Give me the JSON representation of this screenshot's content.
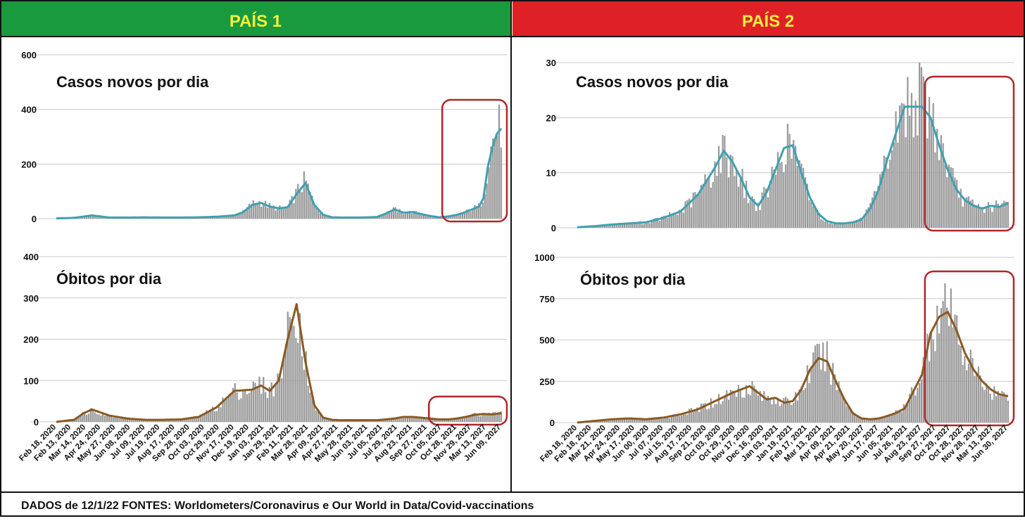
{
  "panels": [
    {
      "header": "PAÍS 1",
      "header_color": "#1a9a3e",
      "header_text_color": "#f5f03a",
      "x_labels": [
        "Feb 18, 2020",
        "Feb 13, 2020",
        "Mar 14, 2020",
        "Apr 24, 2020",
        "May 27, 2020",
        "Jun 08, 2020",
        "Jul 09, 2020",
        "Jul 19, 2020",
        "Aug 17, 2020",
        "Sep 28, 2020",
        "Oct 03, 2020",
        "Oct 29, 2020",
        "Nov 17, 2020",
        "Dec 19, 2020",
        "Jan 03, 2021",
        "Jan 29, 2021",
        "Feb 11, 2021",
        "Mar 28, 2021",
        "Apr 09, 2021",
        "Apr 27, 2021",
        "May 28, 2021",
        "Jun 03, 2021",
        "Jul 05, 2021",
        "Jul 29, 2021",
        "Aug 23, 2021",
        "Sep 27, 2021",
        "Oct 05, 2027",
        "Oct 28, 2021",
        "Nov 29, 2027",
        "Mar 13, 2027",
        "Jun 09, 2027"
      ]
    },
    {
      "header": "PAÍS 2",
      "header_color": "#e02027",
      "header_text_color": "#f5f03a",
      "x_labels": [
        "Feb 18, 2020",
        "Feb 18, 2020",
        "Mar 21, 2020",
        "Apr 24, 2020",
        "May 17, 2020",
        "Jun 00, 2020",
        "Jul 07, 2020",
        "Jul 15, 2020",
        "Aug 17, 2020",
        "Sep 21, 2020",
        "Oct 03, 2020",
        "Oct 29, 2020",
        "Nov 17, 2020",
        "Dec 16, 2020",
        "Jan 03, 2021",
        "Jan 19, 2021",
        "Feb 17, 2021",
        "Mar 13, 2021",
        "Apr 09, 2021",
        "Apr 21, 2021",
        "May 20, 2027",
        "Jun 17, 2027",
        "Jun 05, 2021",
        "Jul 26, 2021",
        "Aug 23, 2027",
        "Sep 27, 2027",
        "Oct 29, 2027",
        "Oct 28, 2027",
        "Nov 28, 2027",
        "Mar 13, 2027",
        "Jun 30, 2027"
      ]
    }
  ],
  "footer": "DADOS de 12/1/22 FONTES: Worldometers/Coronavirus e Our World in Data/Covid-vaccinations",
  "chart_data": [
    {
      "type": "bar",
      "panel": "PAÍS 1",
      "title": "Casos novos por dia",
      "ylim": [
        0,
        600
      ],
      "y_ticks": [
        "0",
        "200",
        "400",
        "600"
      ],
      "grid": true,
      "bar_color": "#9a9a9a",
      "line_color": "#3fa1b0",
      "highlight_box": [
        0.88,
        1.0
      ],
      "x": [
        0,
        0.04,
        0.08,
        0.12,
        0.16,
        0.2,
        0.24,
        0.28,
        0.32,
        0.36,
        0.4,
        0.42,
        0.44,
        0.46,
        0.48,
        0.5,
        0.52,
        0.54,
        0.56,
        0.58,
        0.6,
        0.62,
        0.64,
        0.68,
        0.72,
        0.74,
        0.76,
        0.78,
        0.8,
        0.82,
        0.84,
        0.86,
        0.88,
        0.9,
        0.92,
        0.94,
        0.95,
        0.96,
        0.97,
        0.98,
        0.99,
        1.0
      ],
      "values": [
        1,
        3,
        12,
        4,
        4,
        5,
        4,
        4,
        5,
        7,
        13,
        25,
        55,
        62,
        45,
        38,
        40,
        95,
        140,
        52,
        15,
        5,
        4,
        4,
        6,
        20,
        35,
        22,
        25,
        18,
        10,
        5,
        8,
        15,
        25,
        40,
        45,
        80,
        200,
        280,
        320,
        340
      ],
      "trend": [
        1,
        3,
        12,
        4,
        4,
        5,
        4,
        4,
        5,
        7,
        12,
        24,
        50,
        58,
        44,
        38,
        42,
        90,
        130,
        50,
        14,
        5,
        4,
        4,
        6,
        18,
        34,
        22,
        24,
        17,
        10,
        5,
        8,
        14,
        24,
        38,
        44,
        75,
        190,
        260,
        310,
        330
      ]
    },
    {
      "type": "bar",
      "panel": "PAÍS 1",
      "title": "Óbitos por dia",
      "ylim": [
        0,
        400
      ],
      "y_ticks": [
        "0",
        "100",
        "200",
        "300",
        "400"
      ],
      "grid": true,
      "bar_color": "#9a9a9a",
      "line_color": "#8a5a22",
      "highlight_box": [
        0.85,
        1.0
      ],
      "x": [
        0,
        0.04,
        0.06,
        0.08,
        0.12,
        0.16,
        0.2,
        0.24,
        0.28,
        0.32,
        0.36,
        0.4,
        0.44,
        0.46,
        0.48,
        0.5,
        0.52,
        0.54,
        0.56,
        0.58,
        0.6,
        0.62,
        0.64,
        0.68,
        0.72,
        0.76,
        0.78,
        0.8,
        0.82,
        0.84,
        0.86,
        0.88,
        0.9,
        0.92,
        0.94,
        0.96,
        0.98,
        1.0
      ],
      "values": [
        0,
        5,
        20,
        30,
        15,
        8,
        5,
        5,
        6,
        12,
        35,
        75,
        80,
        90,
        75,
        100,
        210,
        290,
        150,
        40,
        10,
        5,
        4,
        4,
        4,
        8,
        12,
        12,
        10,
        8,
        6,
        6,
        8,
        12,
        18,
        20,
        18,
        22
      ],
      "trend": [
        0,
        5,
        20,
        30,
        15,
        8,
        5,
        5,
        6,
        12,
        35,
        75,
        78,
        88,
        75,
        100,
        200,
        285,
        145,
        40,
        10,
        5,
        4,
        4,
        4,
        8,
        12,
        12,
        10,
        8,
        6,
        6,
        8,
        12,
        17,
        19,
        18,
        21
      ]
    },
    {
      "type": "bar",
      "panel": "PAÍS 2",
      "title": "Casos novos por dia",
      "ylim": [
        0,
        30
      ],
      "y_ticks": [
        "0",
        "10",
        "20",
        "30"
      ],
      "grid": true,
      "bar_color": "#9a9a9a",
      "line_color": "#3fa1b0",
      "highlight_box": [
        0.82,
        1.0
      ],
      "x": [
        0,
        0.04,
        0.08,
        0.12,
        0.16,
        0.2,
        0.24,
        0.28,
        0.3,
        0.32,
        0.34,
        0.36,
        0.38,
        0.4,
        0.42,
        0.44,
        0.46,
        0.48,
        0.5,
        0.52,
        0.54,
        0.56,
        0.58,
        0.6,
        0.62,
        0.64,
        0.66,
        0.68,
        0.7,
        0.72,
        0.76,
        0.8,
        0.82,
        0.84,
        0.86,
        0.88,
        0.9,
        0.92,
        0.94,
        0.96,
        0.98,
        1.0
      ],
      "values": [
        0.1,
        0.3,
        0.6,
        0.8,
        1,
        1.8,
        3,
        6,
        8.5,
        11,
        14,
        12,
        9,
        5.5,
        4,
        6.5,
        10.5,
        14.5,
        15,
        10,
        5.5,
        2.5,
        1.2,
        0.8,
        0.8,
        1,
        1.5,
        3.5,
        7,
        12.5,
        22,
        24,
        21,
        16,
        11,
        7,
        5,
        4,
        3.5,
        4,
        3.8,
        4.5
      ],
      "trend": [
        0.1,
        0.3,
        0.6,
        0.8,
        1,
        1.8,
        3,
        6,
        8.5,
        11,
        14,
        12,
        9,
        5.5,
        4,
        6.5,
        10.5,
        14.5,
        15,
        10,
        5.5,
        2.5,
        1.2,
        0.8,
        0.8,
        1,
        1.5,
        3.5,
        7,
        12.5,
        22,
        22,
        20,
        15,
        10.5,
        7,
        5,
        4,
        3.5,
        4,
        3.8,
        4.5
      ]
    },
    {
      "type": "bar",
      "panel": "PAÍS 2",
      "title": "Óbitos por dia",
      "ylim": [
        0,
        1000
      ],
      "y_ticks": [
        "0",
        "250",
        "500",
        "750",
        "1000"
      ],
      "grid": true,
      "bar_color": "#9a9a9a",
      "line_color": "#8a5a22",
      "highlight_box": [
        0.82,
        1.0
      ],
      "x": [
        0,
        0.04,
        0.08,
        0.12,
        0.16,
        0.2,
        0.24,
        0.28,
        0.32,
        0.36,
        0.38,
        0.4,
        0.42,
        0.44,
        0.46,
        0.48,
        0.5,
        0.52,
        0.54,
        0.56,
        0.58,
        0.6,
        0.62,
        0.64,
        0.66,
        0.68,
        0.7,
        0.72,
        0.74,
        0.76,
        0.8,
        0.82,
        0.84,
        0.86,
        0.88,
        0.9,
        0.92,
        0.94,
        0.96,
        0.98,
        1.0
      ],
      "values": [
        0,
        10,
        20,
        25,
        20,
        30,
        50,
        80,
        130,
        180,
        200,
        230,
        180,
        140,
        150,
        120,
        130,
        200,
        320,
        400,
        380,
        260,
        150,
        60,
        25,
        20,
        25,
        40,
        60,
        90,
        300,
        550,
        650,
        680,
        560,
        420,
        320,
        250,
        200,
        170,
        160
      ],
      "trend": [
        0,
        10,
        20,
        25,
        20,
        30,
        50,
        80,
        130,
        180,
        200,
        220,
        180,
        140,
        150,
        120,
        130,
        200,
        320,
        390,
        370,
        250,
        140,
        55,
        25,
        20,
        25,
        40,
        58,
        85,
        290,
        540,
        640,
        670,
        560,
        420,
        320,
        250,
        200,
        170,
        160
      ]
    }
  ]
}
